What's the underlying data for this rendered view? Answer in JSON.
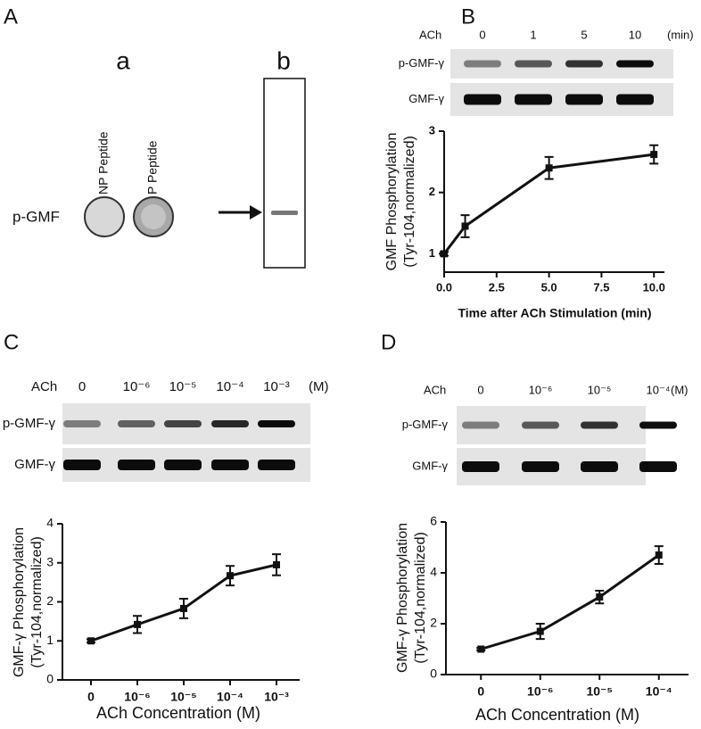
{
  "figure": {
    "panel_A": {
      "letter": "A",
      "a": "a",
      "b": "b",
      "dot_labels": [
        "NP Peptide",
        "P Peptide"
      ],
      "row_label": "p-GMF"
    },
    "panel_B": {
      "letter": "B",
      "treatment": "ACh",
      "lanes": [
        "0",
        "1",
        "5",
        "10"
      ],
      "unit": "(min)",
      "rows": [
        "p-GMF-γ",
        "GMF-γ"
      ]
    },
    "panel_C": {
      "letter": "C",
      "treatment": "ACh",
      "lanes": [
        "0",
        "10⁻⁶",
        "10⁻⁵",
        "10⁻⁴",
        "10⁻³"
      ],
      "unit": "(M)",
      "rows": [
        "p-GMF-γ",
        "GMF-γ"
      ]
    },
    "panel_D": {
      "letter": "D",
      "treatment": "ACh",
      "lanes": [
        "0",
        "10⁻⁶",
        "10⁻⁵",
        "10⁻⁴"
      ],
      "unit": "(M)",
      "rows": [
        "p-GMF-γ",
        "GMF-γ"
      ]
    }
  },
  "chart_data": [
    {
      "type": "line",
      "xlabel": "Time after ACh Stimulation (min)",
      "ylabel": [
        "GMF Phosphorylation",
        "(Tyr-104,normalized)"
      ],
      "x": [
        0,
        1,
        5,
        10
      ],
      "values": [
        1,
        1.45,
        2.4,
        2.62
      ],
      "errors": [
        0.03,
        0.18,
        0.18,
        0.15
      ],
      "color": "#111111",
      "xlim": [
        0,
        10.5
      ],
      "xticks": [
        {
          "value": 0,
          "label": "0.0"
        },
        {
          "value": 2.5,
          "label": "2.5"
        },
        {
          "value": 5,
          "label": "5.0"
        },
        {
          "value": 7.5,
          "label": "7.5"
        },
        {
          "value": 10,
          "label": "10.0"
        }
      ],
      "ylim": [
        0.7,
        3
      ],
      "yticks": [
        1,
        2,
        3
      ]
    },
    {
      "type": "line",
      "xlabel": "ACh Concentration (M)",
      "ylabel": [
        "GMF-γ Phosphorylation",
        "(Tyr-104,normalized)"
      ],
      "categories": [
        "0",
        "10⁻⁶",
        "10⁻⁵",
        "10⁻⁴",
        "10⁻³"
      ],
      "values": [
        1,
        1.42,
        1.83,
        2.67,
        2.95
      ],
      "errors": [
        0.04,
        0.22,
        0.25,
        0.25,
        0.27
      ],
      "color": "#111111",
      "ylim": [
        0,
        4
      ],
      "yticks": [
        0,
        1,
        2,
        3,
        4
      ]
    },
    {
      "type": "line",
      "xlabel": "ACh Concentration (M)",
      "ylabel": [
        "GMF-γ Phosphorylation",
        "(Tyr-104,normalized)"
      ],
      "categories": [
        "0",
        "10⁻⁶",
        "10⁻⁵",
        "10⁻⁴"
      ],
      "values": [
        1,
        1.7,
        3.05,
        4.7
      ],
      "errors": [
        0.05,
        0.3,
        0.25,
        0.35
      ],
      "color": "#111111",
      "ylim": [
        0,
        6
      ],
      "yticks": [
        0,
        2,
        4,
        6
      ]
    }
  ]
}
